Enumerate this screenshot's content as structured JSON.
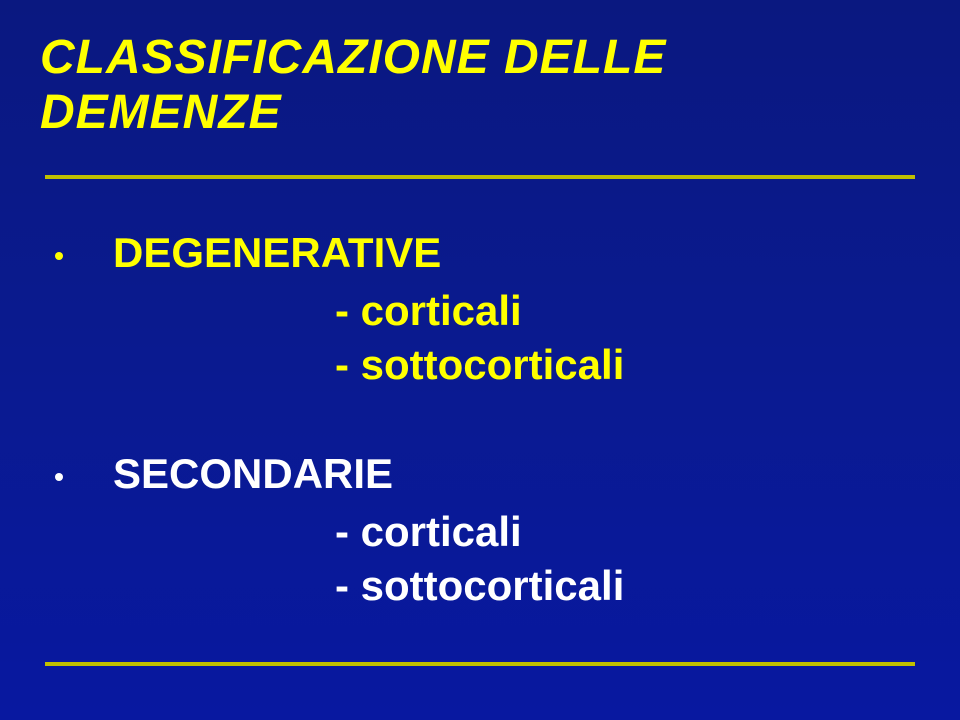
{
  "slide": {
    "title": "CLASSIFICAZIONE DELLE DEMENZE",
    "background_color_top": "#0a1880",
    "background_color_bottom": "#0818a0",
    "accent_color": "#ffff00",
    "secondary_color": "#ffffff",
    "divider_color": "#c0c000",
    "title_fontsize": 48,
    "body_fontsize": 42,
    "sections": [
      {
        "heading": "DEGENERATIVE",
        "color": "yellow",
        "items": [
          "- corticali",
          "- sottocorticali"
        ]
      },
      {
        "heading": "SECONDARIE",
        "color": "white",
        "items": [
          "- corticali",
          "- sottocorticali"
        ]
      }
    ]
  }
}
